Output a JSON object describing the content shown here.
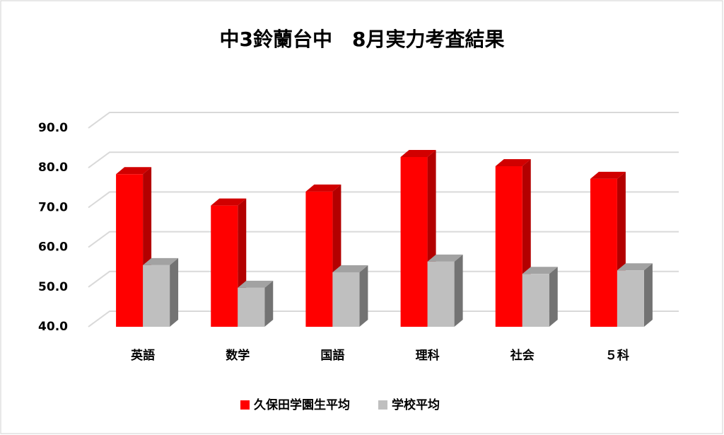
{
  "chart_data": {
    "type": "bar3d",
    "title": "中3鈴蘭台中　8月実力考査結果",
    "categories": [
      "英語",
      "数学",
      "国語",
      "理科",
      "社会",
      "５科"
    ],
    "series": [
      {
        "name": "久保田学園生平均",
        "color": "#ff0000",
        "values": [
          78.4,
          70.5,
          74.0,
          82.7,
          80.4,
          77.2
        ]
      },
      {
        "name": "学校平均",
        "color": "#bfbfbf",
        "values": [
          55.5,
          49.8,
          53.7,
          56.4,
          53.3,
          54.2
        ]
      }
    ],
    "ylim": [
      40,
      90
    ],
    "yticks": [
      {
        "value": 40,
        "label": "40.0"
      },
      {
        "value": 50,
        "label": "50.0"
      },
      {
        "value": 60,
        "label": "60.0"
      },
      {
        "value": 70,
        "label": "70.0"
      },
      {
        "value": 80,
        "label": "80.0"
      },
      {
        "value": 90,
        "label": "90.0"
      }
    ],
    "grid": true,
    "legend": "bottom"
  }
}
